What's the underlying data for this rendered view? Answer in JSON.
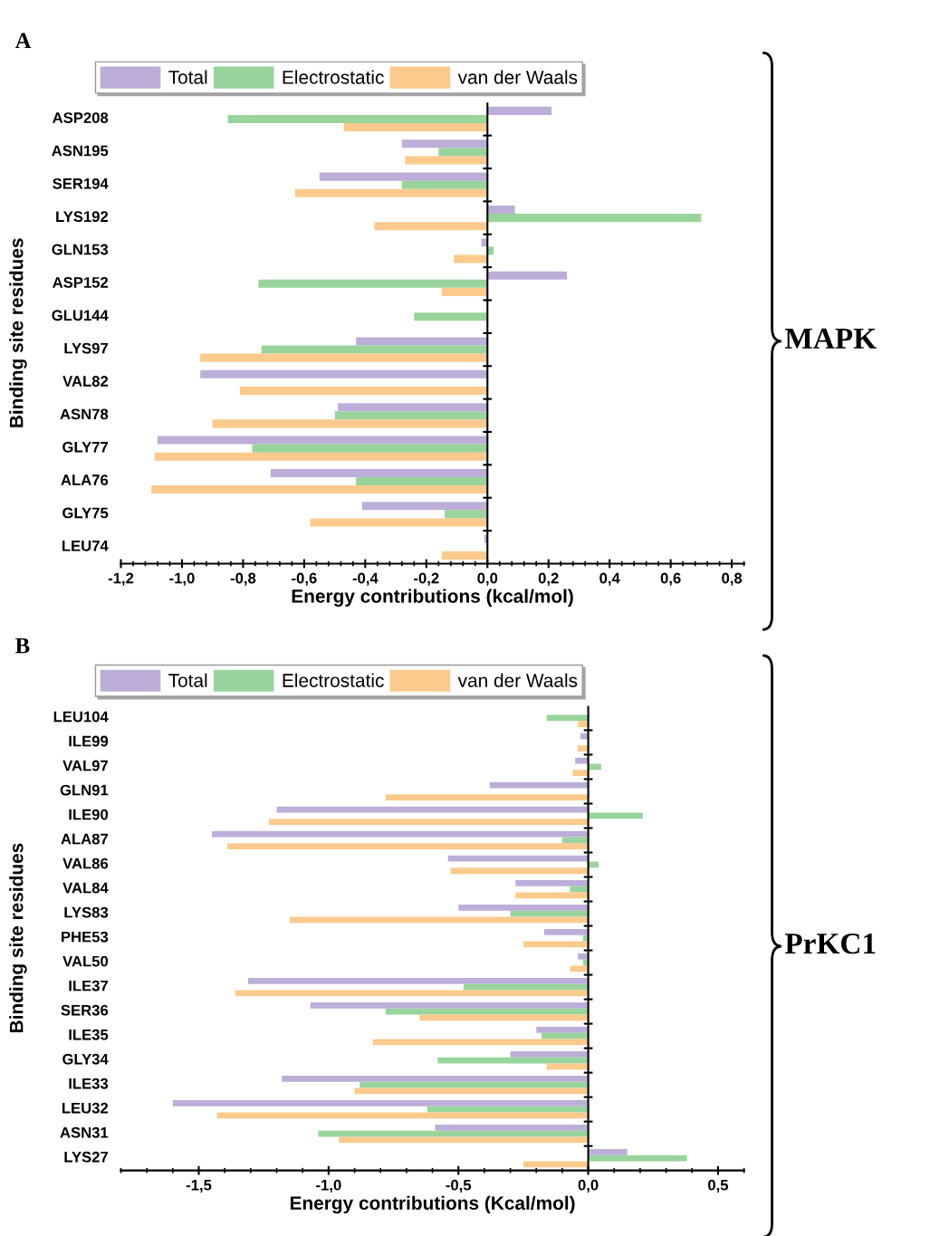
{
  "chart_data": [
    {
      "type": "bar",
      "orientation": "horizontal",
      "title": "A",
      "annotations": [
        "MAPK"
      ],
      "xlabel": "Energy contributions (kcal/mol)",
      "ylabel": "Binding site residues",
      "legend": "top",
      "grid": false,
      "ref_lines": [
        {
          "axis": "x",
          "value": 0,
          "color": "#000000"
        }
      ],
      "categories": [
        "ASP208",
        "ASN195",
        "SER194",
        "LYS192",
        "GLN153",
        "ASP152",
        "GLU144",
        "LYS97",
        "VAL82",
        "ASN78",
        "GLY77",
        "ALA76",
        "GLY75",
        "LEU74"
      ],
      "xlim": [
        -1.2,
        0.84
      ],
      "xticks": [
        {
          "value": -1.2,
          "label": "-1,2"
        },
        {
          "value": -1.0,
          "label": "-1,0"
        },
        {
          "value": -0.8,
          "label": "-0,8"
        },
        {
          "value": -0.6,
          "label": "-0,6"
        },
        {
          "value": -0.4,
          "label": "-0,4"
        },
        {
          "value": -0.2,
          "label": "-0,2"
        },
        {
          "value": 0.0,
          "label": "0,0"
        },
        {
          "value": 0.2,
          "label": "0,2"
        },
        {
          "value": 0.4,
          "label": "0,4"
        },
        {
          "value": 0.6,
          "label": "0,6"
        },
        {
          "value": 0.8,
          "label": "0,8"
        }
      ],
      "series": [
        {
          "name": "Total",
          "color": "#bcaed8",
          "values": [
            0.21,
            -0.28,
            -0.55,
            0.09,
            -0.02,
            0.26,
            0.0,
            -0.43,
            -0.94,
            -0.49,
            -1.08,
            -0.71,
            -0.41,
            -0.01
          ]
        },
        {
          "name": "Electrostatic",
          "color": "#98d49c",
          "values": [
            -0.85,
            -0.16,
            -0.28,
            0.7,
            0.02,
            -0.75,
            -0.24,
            -0.74,
            0.0,
            -0.5,
            -0.77,
            -0.43,
            -0.14,
            0.0
          ]
        },
        {
          "name": "van der Waals",
          "color": "#fbca8c",
          "values": [
            -0.47,
            -0.27,
            -0.63,
            -0.37,
            -0.11,
            -0.15,
            0.0,
            -0.94,
            -0.81,
            -0.9,
            -1.09,
            -1.1,
            -0.58,
            -0.15
          ]
        }
      ]
    },
    {
      "type": "bar",
      "orientation": "horizontal",
      "title": "B",
      "annotations": [
        "PrKC1"
      ],
      "xlabel": "Energy contributions (Kcal/mol)",
      "ylabel": "Binding site residues",
      "legend": "top",
      "grid": false,
      "ref_lines": [
        {
          "axis": "x",
          "value": 0,
          "color": "#000000"
        }
      ],
      "categories": [
        "LEU104",
        "ILE99",
        "VAL97",
        "GLN91",
        "ILE90",
        "ALA87",
        "VAL86",
        "VAL84",
        "LYS83",
        "PHE53",
        "VAL50",
        "ILE37",
        "SER36",
        "ILE35",
        "GLY34",
        "ILE33",
        "LEU32",
        "ASN31",
        "LYS27"
      ],
      "xlim": [
        -1.8,
        0.6
      ],
      "xticks": [
        {
          "value": -1.5,
          "label": "-1,5"
        },
        {
          "value": -1.0,
          "label": "-1,0"
        },
        {
          "value": -0.5,
          "label": "-0,5"
        },
        {
          "value": 0.0,
          "label": "0,0"
        },
        {
          "value": 0.5,
          "label": "0,5"
        }
      ],
      "series": [
        {
          "name": "Total",
          "color": "#bcaed8",
          "values": [
            0.0,
            -0.03,
            -0.05,
            -0.38,
            -1.2,
            -1.45,
            -0.54,
            -0.28,
            -0.5,
            -0.17,
            -0.04,
            -1.31,
            -1.07,
            -0.2,
            -0.3,
            -1.18,
            -1.6,
            -0.59,
            0.15
          ]
        },
        {
          "name": "Electrostatic",
          "color": "#98d49c",
          "values": [
            -0.16,
            null,
            0.05,
            null,
            0.21,
            -0.1,
            0.04,
            -0.07,
            -0.3,
            -0.02,
            -0.02,
            -0.48,
            -0.78,
            -0.18,
            -0.58,
            -0.88,
            -0.62,
            -1.04,
            0.38
          ]
        },
        {
          "name": "van der Waals",
          "color": "#fbca8c",
          "values": [
            -0.04,
            -0.04,
            -0.06,
            -0.78,
            -1.23,
            -1.39,
            -0.53,
            -0.28,
            -1.15,
            -0.25,
            -0.07,
            -1.36,
            -0.65,
            -0.83,
            -0.16,
            -0.9,
            -1.43,
            -0.96,
            -0.25
          ]
        }
      ]
    }
  ]
}
